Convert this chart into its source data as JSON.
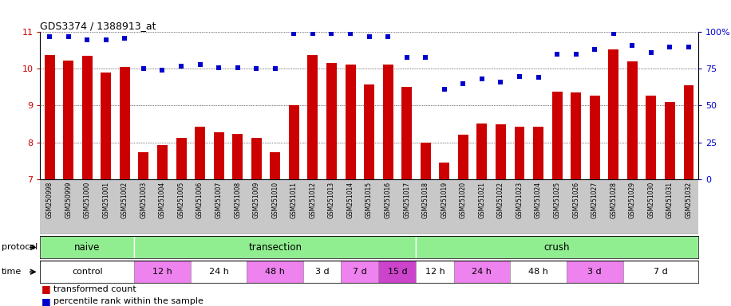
{
  "title": "GDS3374 / 1388913_at",
  "samples": [
    "GSM250998",
    "GSM250999",
    "GSM251000",
    "GSM251001",
    "GSM251002",
    "GSM251003",
    "GSM251004",
    "GSM251005",
    "GSM251006",
    "GSM251007",
    "GSM251008",
    "GSM251009",
    "GSM251010",
    "GSM251011",
    "GSM251012",
    "GSM251013",
    "GSM251014",
    "GSM251015",
    "GSM251016",
    "GSM251017",
    "GSM251018",
    "GSM251019",
    "GSM251020",
    "GSM251021",
    "GSM251022",
    "GSM251023",
    "GSM251024",
    "GSM251025",
    "GSM251026",
    "GSM251027",
    "GSM251028",
    "GSM251029",
    "GSM251030",
    "GSM251031",
    "GSM251032"
  ],
  "red_values": [
    10.38,
    10.22,
    10.35,
    9.91,
    10.05,
    7.72,
    7.92,
    8.12,
    8.43,
    8.27,
    8.22,
    8.13,
    7.72,
    9.0,
    10.37,
    10.15,
    10.12,
    9.57,
    10.12,
    9.52,
    8.0,
    7.45,
    8.21,
    8.52,
    8.48,
    8.42,
    8.42,
    9.37,
    9.35,
    9.28,
    10.53,
    10.2,
    9.28,
    9.1,
    9.55
  ],
  "blue_values": [
    97,
    97,
    95,
    95,
    96,
    75,
    74,
    77,
    78,
    76,
    76,
    75,
    75,
    99,
    99,
    99,
    99,
    97,
    97,
    83,
    83,
    61,
    65,
    68,
    66,
    70,
    69,
    85,
    85,
    88,
    99,
    91,
    86,
    90,
    90
  ],
  "ylim_left": [
    7,
    11
  ],
  "ylim_right": [
    0,
    100
  ],
  "yticks_left": [
    7,
    8,
    9,
    10,
    11
  ],
  "yticks_right": [
    0,
    25,
    50,
    75,
    100
  ],
  "bar_color": "#cc0000",
  "dot_color": "#0000cc",
  "protocol_groups": [
    {
      "label": "naive",
      "start": 0,
      "end": 4
    },
    {
      "label": "transection",
      "start": 5,
      "end": 19
    },
    {
      "label": "crush",
      "start": 20,
      "end": 34
    }
  ],
  "time_groups": [
    {
      "label": "control",
      "start": 0,
      "end": 4,
      "color": "#ffffff"
    },
    {
      "label": "12 h",
      "start": 5,
      "end": 7,
      "color": "#ee82ee"
    },
    {
      "label": "24 h",
      "start": 8,
      "end": 10,
      "color": "#ffffff"
    },
    {
      "label": "48 h",
      "start": 11,
      "end": 13,
      "color": "#ee82ee"
    },
    {
      "label": "3 d",
      "start": 14,
      "end": 15,
      "color": "#ffffff"
    },
    {
      "label": "7 d",
      "start": 16,
      "end": 17,
      "color": "#ee82ee"
    },
    {
      "label": "15 d",
      "start": 18,
      "end": 19,
      "color": "#cc44cc"
    },
    {
      "label": "12 h",
      "start": 20,
      "end": 21,
      "color": "#ffffff"
    },
    {
      "label": "24 h",
      "start": 22,
      "end": 24,
      "color": "#ee82ee"
    },
    {
      "label": "48 h",
      "start": 25,
      "end": 27,
      "color": "#ffffff"
    },
    {
      "label": "3 d",
      "start": 28,
      "end": 30,
      "color": "#ee82ee"
    },
    {
      "label": "7 d",
      "start": 31,
      "end": 34,
      "color": "#ffffff"
    }
  ],
  "legend_red": "transformed count",
  "legend_blue": "percentile rank within the sample",
  "protocol_label": "protocol",
  "time_label": "time",
  "proto_color": "#90ee90",
  "xtick_bg": "#c8c8c8"
}
